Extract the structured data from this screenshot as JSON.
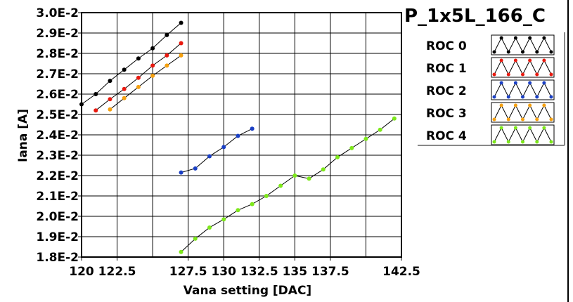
{
  "chart_data": {
    "type": "line",
    "title": "P_1x5L_166_C",
    "xlabel": "Vana setting [DAC]",
    "ylabel": "Iana [A]",
    "xlim": [
      120,
      142.5
    ],
    "ylim": [
      0.018,
      0.03
    ],
    "x_ticks": [
      "120",
      "122.5",
      "127.5",
      "130",
      "132.5",
      "135",
      "137.5",
      "142.5"
    ],
    "x_tick_values": [
      120,
      122.5,
      127.5,
      130,
      132.5,
      135,
      137.5,
      142.5
    ],
    "y_ticks": [
      "3.0E-2",
      "2.9E-2",
      "2.8E-2",
      "2.7E-2",
      "2.6E-2",
      "2.5E-2",
      "2.4E-2",
      "2.3E-2",
      "2.2E-2",
      "2.1E-2",
      "2.0E-2",
      "1.9E-2",
      "1.8E-2"
    ],
    "y_tick_values": [
      0.03,
      0.029,
      0.028,
      0.027,
      0.026,
      0.025,
      0.024,
      0.023,
      0.022,
      0.021,
      0.02,
      0.019,
      0.018
    ],
    "grid": true,
    "legend_position": "right",
    "series": [
      {
        "name": "ROC 0",
        "color": "#000000",
        "x": [
          120,
          121,
          122,
          123,
          124,
          125,
          126,
          127
        ],
        "y": [
          0.0255,
          0.026,
          0.02665,
          0.0272,
          0.02775,
          0.02825,
          0.0289,
          0.0295
        ]
      },
      {
        "name": "ROC 1",
        "color": "#e8190f",
        "x": [
          121,
          122,
          123,
          124,
          125,
          126,
          127
        ],
        "y": [
          0.0252,
          0.02575,
          0.02625,
          0.0268,
          0.0274,
          0.0279,
          0.0285
        ]
      },
      {
        "name": "ROC 2",
        "color": "#1a3fc4",
        "x": [
          127,
          128,
          129,
          130,
          131,
          132
        ],
        "y": [
          0.02215,
          0.02235,
          0.02295,
          0.0234,
          0.02395,
          0.0243
        ]
      },
      {
        "name": "ROC 3",
        "color": "#f5a00f",
        "x": [
          122,
          123,
          124,
          125,
          126,
          127
        ],
        "y": [
          0.02525,
          0.0258,
          0.02635,
          0.0269,
          0.0274,
          0.0279
        ]
      },
      {
        "name": "ROC 4",
        "color": "#7de81a",
        "x": [
          127,
          128,
          129,
          130,
          131,
          132,
          133,
          134,
          135,
          136,
          137,
          138,
          139,
          140,
          141,
          142
        ],
        "y": [
          0.01825,
          0.0189,
          0.01945,
          0.01985,
          0.0203,
          0.0206,
          0.021,
          0.0215,
          0.022,
          0.02185,
          0.0223,
          0.0229,
          0.02335,
          0.0238,
          0.02425,
          0.0248
        ]
      }
    ]
  }
}
